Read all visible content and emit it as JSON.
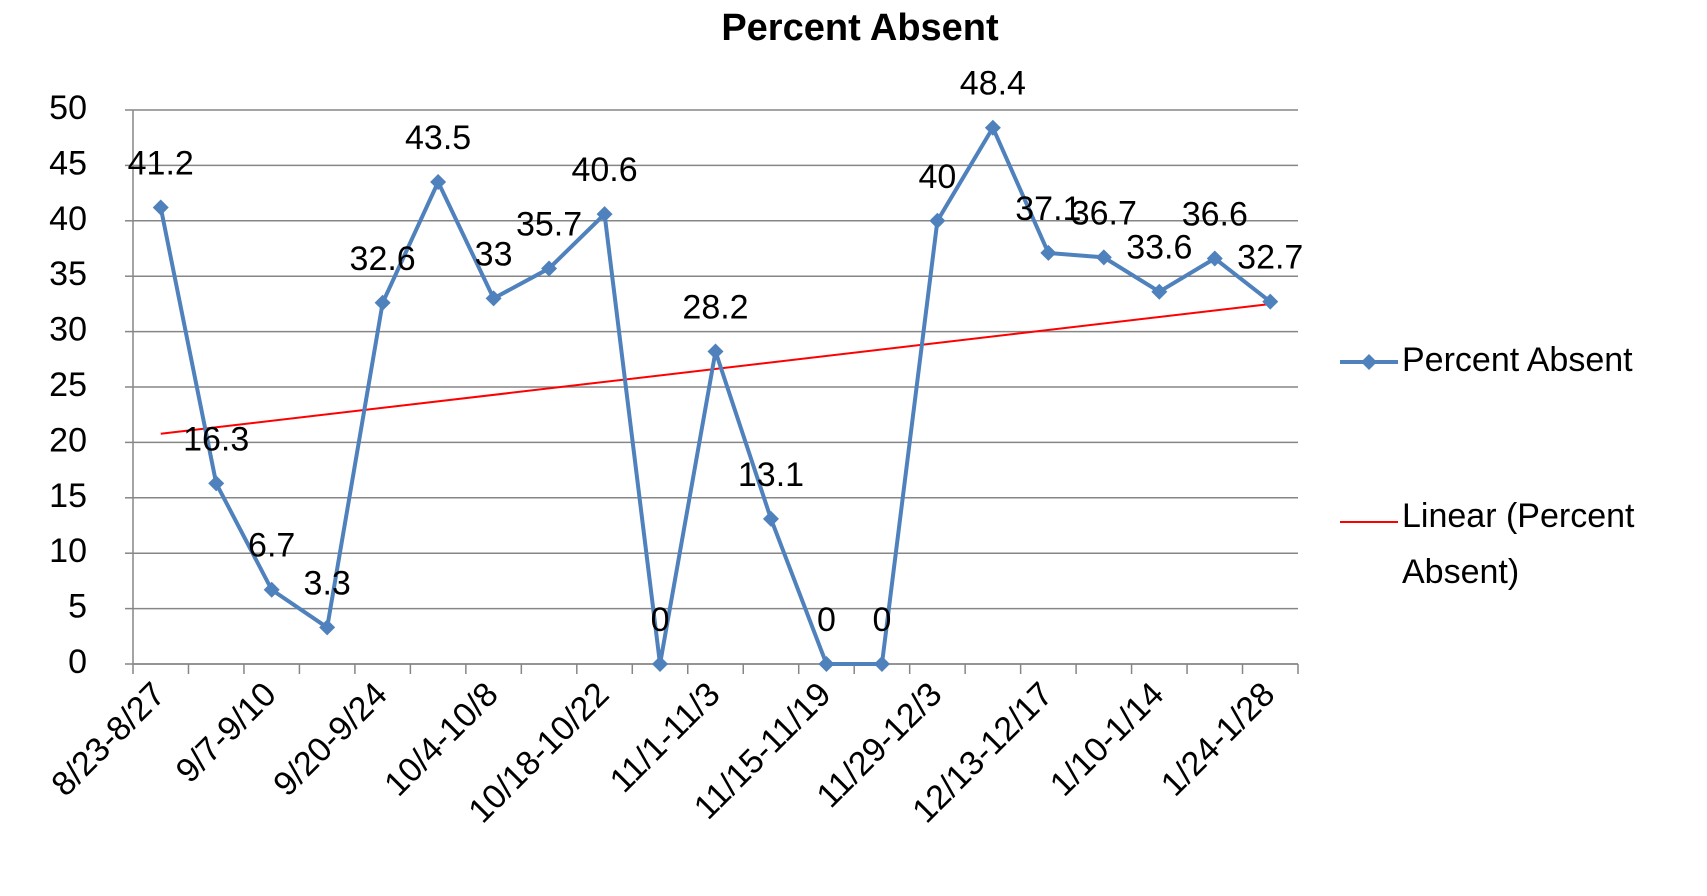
{
  "chart_data": {
    "type": "line",
    "title": "Percent Absent",
    "categories": [
      "8/23-8/27",
      null,
      "9/7-9/10",
      null,
      "9/20-9/24",
      null,
      "10/4-10/8",
      null,
      "10/18-10/22",
      null,
      "11/1-11/3",
      null,
      "11/15-11/19",
      null,
      "11/29-12/3",
      null,
      "12/13-12/17",
      null,
      "1/10-1/14",
      null,
      "1/24-1/28"
    ],
    "series": [
      {
        "name": "Percent Absent",
        "color": "#4f81bd",
        "values": [
          41.2,
          16.3,
          6.7,
          3.3,
          32.6,
          43.5,
          33,
          35.7,
          40.6,
          0,
          28.2,
          13.1,
          0,
          0,
          40,
          48.4,
          37.1,
          36.7,
          33.6,
          36.6,
          32.7
        ]
      }
    ],
    "trendline": {
      "name": "Linear (Percent Absent)",
      "color": "#ff0000",
      "kind": "linear"
    },
    "ylim": [
      0,
      50
    ],
    "yticks": [
      0,
      5,
      10,
      15,
      20,
      25,
      30,
      35,
      40,
      45,
      50
    ],
    "grid": true,
    "legend": "right"
  }
}
